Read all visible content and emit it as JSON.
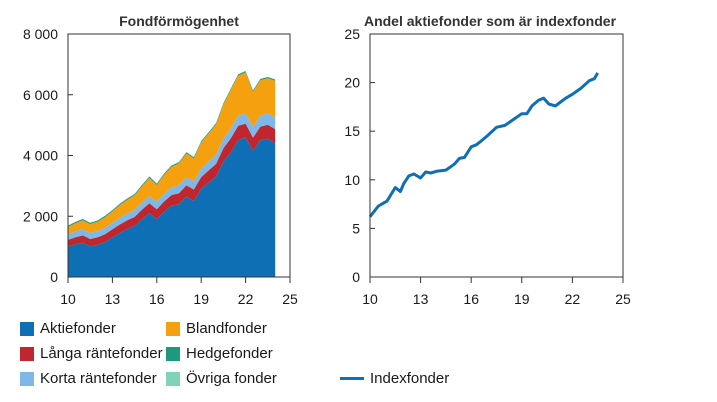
{
  "chart_data": [
    {
      "type": "area",
      "title": "Fondförmögenhet",
      "x_ticks": [
        "10",
        "13",
        "16",
        "19",
        "22",
        "25"
      ],
      "y_ticks": [
        "0",
        "2 000",
        "4 000",
        "6 000",
        "8 000"
      ],
      "xlim": [
        10,
        25
      ],
      "ylim": [
        0,
        8000
      ],
      "stacked": true,
      "x": [
        10,
        10.5,
        11,
        11.5,
        12,
        12.5,
        13,
        13.5,
        14,
        14.5,
        15,
        15.5,
        16,
        16.5,
        17,
        17.5,
        18,
        18.5,
        19,
        19.5,
        20,
        20.5,
        21,
        21.5,
        22,
        22.5,
        23,
        23.5,
        24
      ],
      "series": [
        {
          "name": "Aktiefonder",
          "color": "#0f6fb5",
          "values": [
            1000,
            1080,
            1130,
            1010,
            1060,
            1150,
            1300,
            1450,
            1580,
            1680,
            1900,
            2100,
            1900,
            2150,
            2350,
            2400,
            2650,
            2500,
            2900,
            3100,
            3300,
            3800,
            4100,
            4500,
            4600,
            4150,
            4500,
            4550,
            4400
          ]
        },
        {
          "name": "Långa räntefonder",
          "color": "#c0262d",
          "values": [
            220,
            230,
            240,
            240,
            250,
            260,
            270,
            280,
            290,
            300,
            320,
            330,
            330,
            340,
            350,
            360,
            370,
            380,
            390,
            410,
            420,
            440,
            470,
            480,
            450,
            440,
            450,
            460,
            470
          ]
        },
        {
          "name": "Korta räntefonder",
          "color": "#7eb8e8",
          "values": [
            180,
            190,
            200,
            200,
            200,
            210,
            210,
            220,
            220,
            230,
            230,
            240,
            240,
            250,
            250,
            260,
            260,
            270,
            280,
            280,
            300,
            310,
            320,
            330,
            340,
            350,
            370,
            380,
            390
          ]
        },
        {
          "name": "Blandfonder",
          "color": "#f5a00f",
          "values": [
            250,
            270,
            300,
            290,
            310,
            350,
            380,
            420,
            450,
            480,
            540,
            600,
            560,
            630,
            680,
            720,
            790,
            750,
            860,
            930,
            1000,
            1130,
            1270,
            1320,
            1350,
            1160,
            1160,
            1150,
            1200
          ]
        },
        {
          "name": "Hedgefonder",
          "color": "#1b9a7d",
          "values": [
            40,
            40,
            40,
            40,
            40,
            40,
            40,
            40,
            40,
            40,
            40,
            40,
            40,
            40,
            40,
            40,
            40,
            40,
            40,
            40,
            40,
            40,
            40,
            40,
            40,
            40,
            40,
            40,
            40
          ]
        },
        {
          "name": "Övriga fonder",
          "color": "#7fd3b8",
          "values": [
            10,
            10,
            10,
            10,
            10,
            10,
            10,
            10,
            10,
            10,
            10,
            10,
            10,
            10,
            10,
            10,
            10,
            10,
            10,
            10,
            10,
            10,
            10,
            10,
            10,
            10,
            10,
            10,
            10
          ]
        }
      ]
    },
    {
      "type": "line",
      "title": "Andel aktiefonder som är indexfonder",
      "x_ticks": [
        "10",
        "13",
        "16",
        "19",
        "22",
        "25"
      ],
      "y_ticks": [
        "0",
        "5",
        "10",
        "15",
        "20",
        "25"
      ],
      "xlim": [
        10,
        25
      ],
      "ylim": [
        0,
        25
      ],
      "x": [
        10,
        10.5,
        11,
        11.5,
        11.8,
        12,
        12.3,
        12.6,
        13,
        13.3,
        13.6,
        14,
        14.5,
        15,
        15.3,
        15.6,
        16,
        16.3,
        16.6,
        17,
        17.5,
        18,
        18.5,
        19,
        19.3,
        19.6,
        20,
        20.3,
        20.6,
        21,
        21.3,
        21.6,
        22,
        22.5,
        23,
        23.3,
        23.5
      ],
      "series": [
        {
          "name": "Indexfonder",
          "color": "#0f6fb5",
          "values": [
            6.2,
            7.3,
            7.8,
            9.2,
            8.8,
            9.6,
            10.4,
            10.6,
            10.2,
            10.8,
            10.7,
            10.9,
            11.0,
            11.6,
            12.2,
            12.3,
            13.4,
            13.6,
            14.0,
            14.6,
            15.4,
            15.6,
            16.2,
            16.8,
            16.8,
            17.6,
            18.2,
            18.4,
            17.8,
            17.6,
            18.0,
            18.4,
            18.8,
            19.4,
            20.2,
            20.4,
            21.0
          ]
        }
      ]
    }
  ]
}
